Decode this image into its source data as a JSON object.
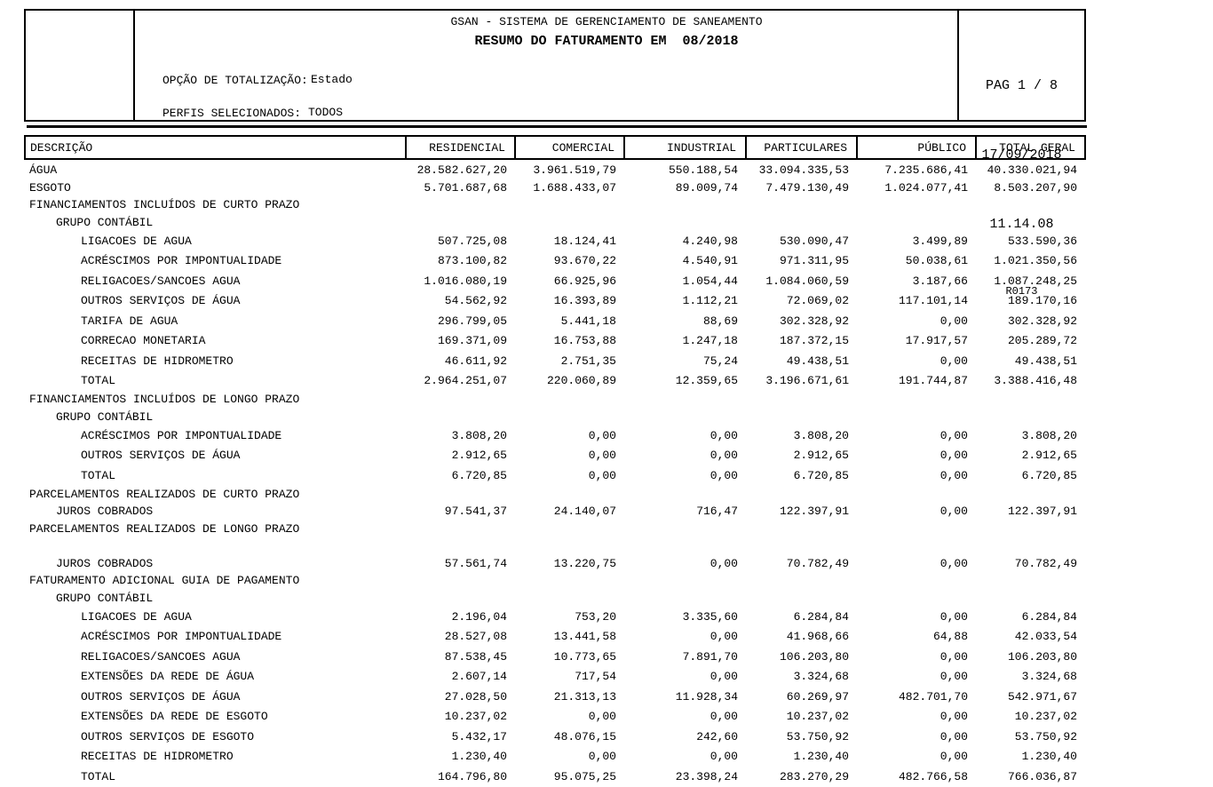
{
  "header": {
    "system_title": "GSAN - SISTEMA DE GERENCIAMENTO DE SANEAMENTO",
    "report_title": "RESUMO DO FATURAMENTO EM  08/2018",
    "totalization_label": "OPÇÃO DE TOTALIZAÇÃO:",
    "totalization_value": "Estado",
    "profiles_label": "PERFIS SELECIONADOS:",
    "profiles_value": "TODOS",
    "page_info": "PAG 1 / 8",
    "date": "17/09/2018",
    "time": "11.14.08",
    "report_code": "R0173"
  },
  "table": {
    "columns": [
      "DESCRIÇÃO",
      "RESIDENCIAL",
      "COMERCIAL",
      "INDUSTRIAL",
      "PARTICULARES",
      "PÚBLICO",
      "TOTAL GERAL"
    ],
    "rows": [
      {
        "label": "ÁGUA",
        "indent": 0,
        "values": [
          "28.582.627,20",
          "3.961.519,79",
          "550.188,54",
          "33.094.335,53",
          "7.235.686,41",
          "40.330.021,94"
        ]
      },
      {
        "label": "ESGOTO",
        "indent": 0,
        "values": [
          "5.701.687,68",
          "1.688.433,07",
          "89.009,74",
          "7.479.130,49",
          "1.024.077,41",
          "8.503.207,90"
        ]
      },
      {
        "label": "FINANCIAMENTOS INCLUÍDOS DE CURTO PRAZO",
        "indent": 0,
        "values": []
      },
      {
        "label": "GRUPO CONTÁBIL",
        "indent": 1,
        "values": []
      },
      {
        "label": "LIGACOES DE AGUA",
        "indent": 2,
        "values": [
          "507.725,08",
          "18.124,41",
          "4.240,98",
          "530.090,47",
          "3.499,89",
          "533.590,36"
        ]
      },
      {
        "label": "ACRÉSCIMOS POR IMPONTUALIDADE",
        "indent": 2,
        "values": [
          "873.100,82",
          "93.670,22",
          "4.540,91",
          "971.311,95",
          "50.038,61",
          "1.021.350,56"
        ]
      },
      {
        "label": "RELIGACOES/SANCOES AGUA",
        "indent": 2,
        "values": [
          "1.016.080,19",
          "66.925,96",
          "1.054,44",
          "1.084.060,59",
          "3.187,66",
          "1.087.248,25"
        ]
      },
      {
        "label": "OUTROS SERVIÇOS DE ÁGUA",
        "indent": 2,
        "values": [
          "54.562,92",
          "16.393,89",
          "1.112,21",
          "72.069,02",
          "117.101,14",
          "189.170,16"
        ]
      },
      {
        "label": "TARIFA DE AGUA",
        "indent": 2,
        "values": [
          "296.799,05",
          "5.441,18",
          "88,69",
          "302.328,92",
          "0,00",
          "302.328,92"
        ]
      },
      {
        "label": "CORRECAO MONETARIA",
        "indent": 2,
        "values": [
          "169.371,09",
          "16.753,88",
          "1.247,18",
          "187.372,15",
          "17.917,57",
          "205.289,72"
        ]
      },
      {
        "label": "RECEITAS DE HIDROMETRO",
        "indent": 2,
        "values": [
          "46.611,92",
          "2.751,35",
          "75,24",
          "49.438,51",
          "0,00",
          "49.438,51"
        ]
      },
      {
        "label": "TOTAL",
        "indent": 2,
        "values": [
          "2.964.251,07",
          "220.060,89",
          "12.359,65",
          "3.196.671,61",
          "191.744,87",
          "3.388.416,48"
        ]
      },
      {
        "label": "FINANCIAMENTOS INCLUÍDOS DE LONGO PRAZO",
        "indent": 0,
        "values": []
      },
      {
        "label": "GRUPO CONTÁBIL",
        "indent": 1,
        "values": []
      },
      {
        "label": "ACRÉSCIMOS POR IMPONTUALIDADE",
        "indent": 2,
        "values": [
          "3.808,20",
          "0,00",
          "0,00",
          "3.808,20",
          "0,00",
          "3.808,20"
        ]
      },
      {
        "label": "OUTROS SERVIÇOS DE ÁGUA",
        "indent": 2,
        "values": [
          "2.912,65",
          "0,00",
          "0,00",
          "2.912,65",
          "0,00",
          "2.912,65"
        ]
      },
      {
        "label": "TOTAL",
        "indent": 2,
        "values": [
          "6.720,85",
          "0,00",
          "0,00",
          "6.720,85",
          "0,00",
          "6.720,85"
        ]
      },
      {
        "label": "PARCELAMENTOS REALIZADOS DE CURTO PRAZO",
        "indent": 0,
        "values": []
      },
      {
        "label": "JUROS COBRADOS",
        "indent": 1,
        "values": [
          "97.541,37",
          "24.140,07",
          "716,47",
          "122.397,91",
          "0,00",
          "122.397,91"
        ]
      },
      {
        "label": "PARCELAMENTOS REALIZADOS DE LONGO PRAZO",
        "indent": 0,
        "values": []
      },
      {
        "label": "",
        "indent": 0,
        "values": []
      },
      {
        "label": "JUROS COBRADOS",
        "indent": 1,
        "values": [
          "57.561,74",
          "13.220,75",
          "0,00",
          "70.782,49",
          "0,00",
          "70.782,49"
        ]
      },
      {
        "label": "FATURAMENTO ADICIONAL GUIA DE PAGAMENTO",
        "indent": 0,
        "values": []
      },
      {
        "label": "GRUPO CONTÁBIL",
        "indent": 1,
        "values": []
      },
      {
        "label": "LIGACOES DE AGUA",
        "indent": 2,
        "values": [
          "2.196,04",
          "753,20",
          "3.335,60",
          "6.284,84",
          "0,00",
          "6.284,84"
        ]
      },
      {
        "label": "ACRÉSCIMOS POR IMPONTUALIDADE",
        "indent": 2,
        "values": [
          "28.527,08",
          "13.441,58",
          "0,00",
          "41.968,66",
          "64,88",
          "42.033,54"
        ]
      },
      {
        "label": "RELIGACOES/SANCOES AGUA",
        "indent": 2,
        "values": [
          "87.538,45",
          "10.773,65",
          "7.891,70",
          "106.203,80",
          "0,00",
          "106.203,80"
        ]
      },
      {
        "label": "EXTENSÕES DA REDE DE ÁGUA",
        "indent": 2,
        "values": [
          "2.607,14",
          "717,54",
          "0,00",
          "3.324,68",
          "0,00",
          "3.324,68"
        ]
      },
      {
        "label": "OUTROS SERVIÇOS DE ÁGUA",
        "indent": 2,
        "values": [
          "27.028,50",
          "21.313,13",
          "11.928,34",
          "60.269,97",
          "482.701,70",
          "542.971,67"
        ]
      },
      {
        "label": "EXTENSÕES DA REDE DE ESGOTO",
        "indent": 2,
        "values": [
          "10.237,02",
          "0,00",
          "0,00",
          "10.237,02",
          "0,00",
          "10.237,02"
        ]
      },
      {
        "label": "OUTROS SERVIÇOS DE ESGOTO",
        "indent": 2,
        "values": [
          "5.432,17",
          "48.076,15",
          "242,60",
          "53.750,92",
          "0,00",
          "53.750,92"
        ]
      },
      {
        "label": "RECEITAS DE HIDROMETRO",
        "indent": 2,
        "values": [
          "1.230,40",
          "0,00",
          "0,00",
          "1.230,40",
          "0,00",
          "1.230,40"
        ]
      },
      {
        "label": "TOTAL",
        "indent": 2,
        "values": [
          "164.796,80",
          "95.075,25",
          "23.398,24",
          "283.270,29",
          "482.766,58",
          "766.036,87"
        ]
      }
    ]
  }
}
